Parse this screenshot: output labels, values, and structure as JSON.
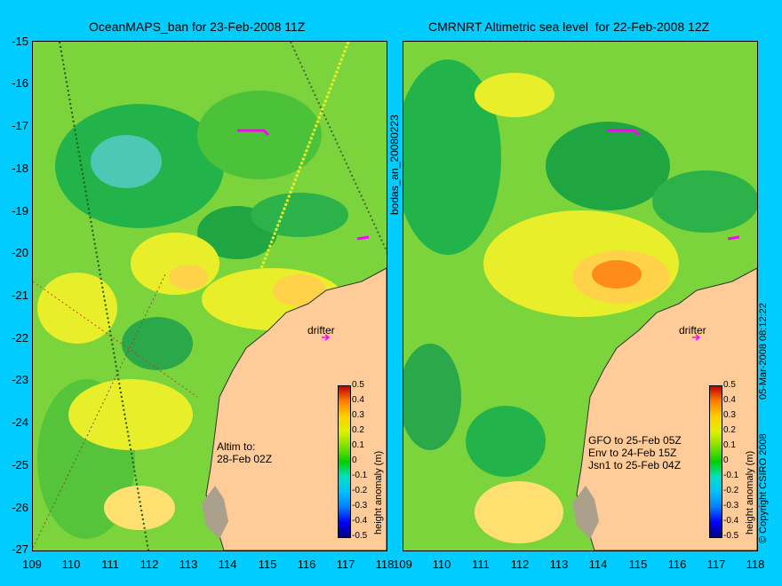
{
  "left_panel": {
    "title": "OceanMAPS_ban for 23-Feb-2008 11Z",
    "drifter_label": "drifter",
    "altim_note": [
      "Altim to:",
      "28-Feb 02Z"
    ]
  },
  "right_panel": {
    "title": "CMRNRT Altimetric sea level  for 22-Feb-2008 12Z",
    "drifter_label": "drifter",
    "satellite_notes": [
      "GFO to 25-Feb 05Z",
      "Env to 24-Feb 15Z",
      "Jsn1 to 25-Feb 04Z"
    ]
  },
  "middle_label": "bodas_an_20080223",
  "y_axis_ticks": [
    "-15",
    "-16",
    "-17",
    "-18",
    "-19",
    "-20",
    "-21",
    "-22",
    "-23",
    "-24",
    "-25",
    "-26",
    "-27"
  ],
  "x_axis_ticks": [
    "109",
    "110",
    "111",
    "112",
    "113",
    "114",
    "115",
    "116",
    "117",
    "118"
  ],
  "colorbar": {
    "label": "height anomaly (m)",
    "ticks": [
      "0.5",
      "0.4",
      "0.3",
      "0.2",
      "0.1",
      "0",
      "-0.1",
      "-0.2",
      "-0.3",
      "-0.4",
      "-0.5"
    ],
    "colors": [
      "#000080",
      "#0000ff",
      "#0080ff",
      "#00c0ff",
      "#00e0c0",
      "#00d000",
      "#80e000",
      "#e0f000",
      "#ffd000",
      "#ff8000",
      "#c00000"
    ]
  },
  "copyright": "© Copyright CSIRO 2008",
  "timestamp": "05-Mar-2008 08:12:22",
  "colors": {
    "background": "#00ccff",
    "land": "#ffcc99",
    "drifter": "#ff00ff"
  }
}
